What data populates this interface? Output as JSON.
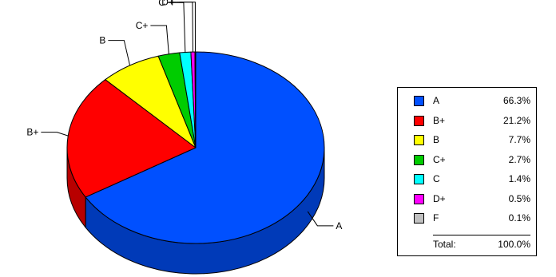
{
  "chart_data": {
    "type": "pie",
    "style": "3d",
    "categories": [
      "A",
      "B+",
      "B",
      "C+",
      "C",
      "D+",
      "F"
    ],
    "values": [
      66.3,
      21.2,
      7.7,
      2.7,
      1.4,
      0.5,
      0.1
    ],
    "value_labels": [
      "66.3%",
      "21.2%",
      "7.7%",
      "2.7%",
      "1.4%",
      "0.5%",
      "0.1%"
    ],
    "colors": [
      "#0050ff",
      "#ff0000",
      "#ffff00",
      "#00cc00",
      "#00ffff",
      "#ff00ff",
      "#c0c0c0"
    ],
    "legend_position": "right",
    "total_label": "Total:",
    "total_value": "100.0%"
  }
}
